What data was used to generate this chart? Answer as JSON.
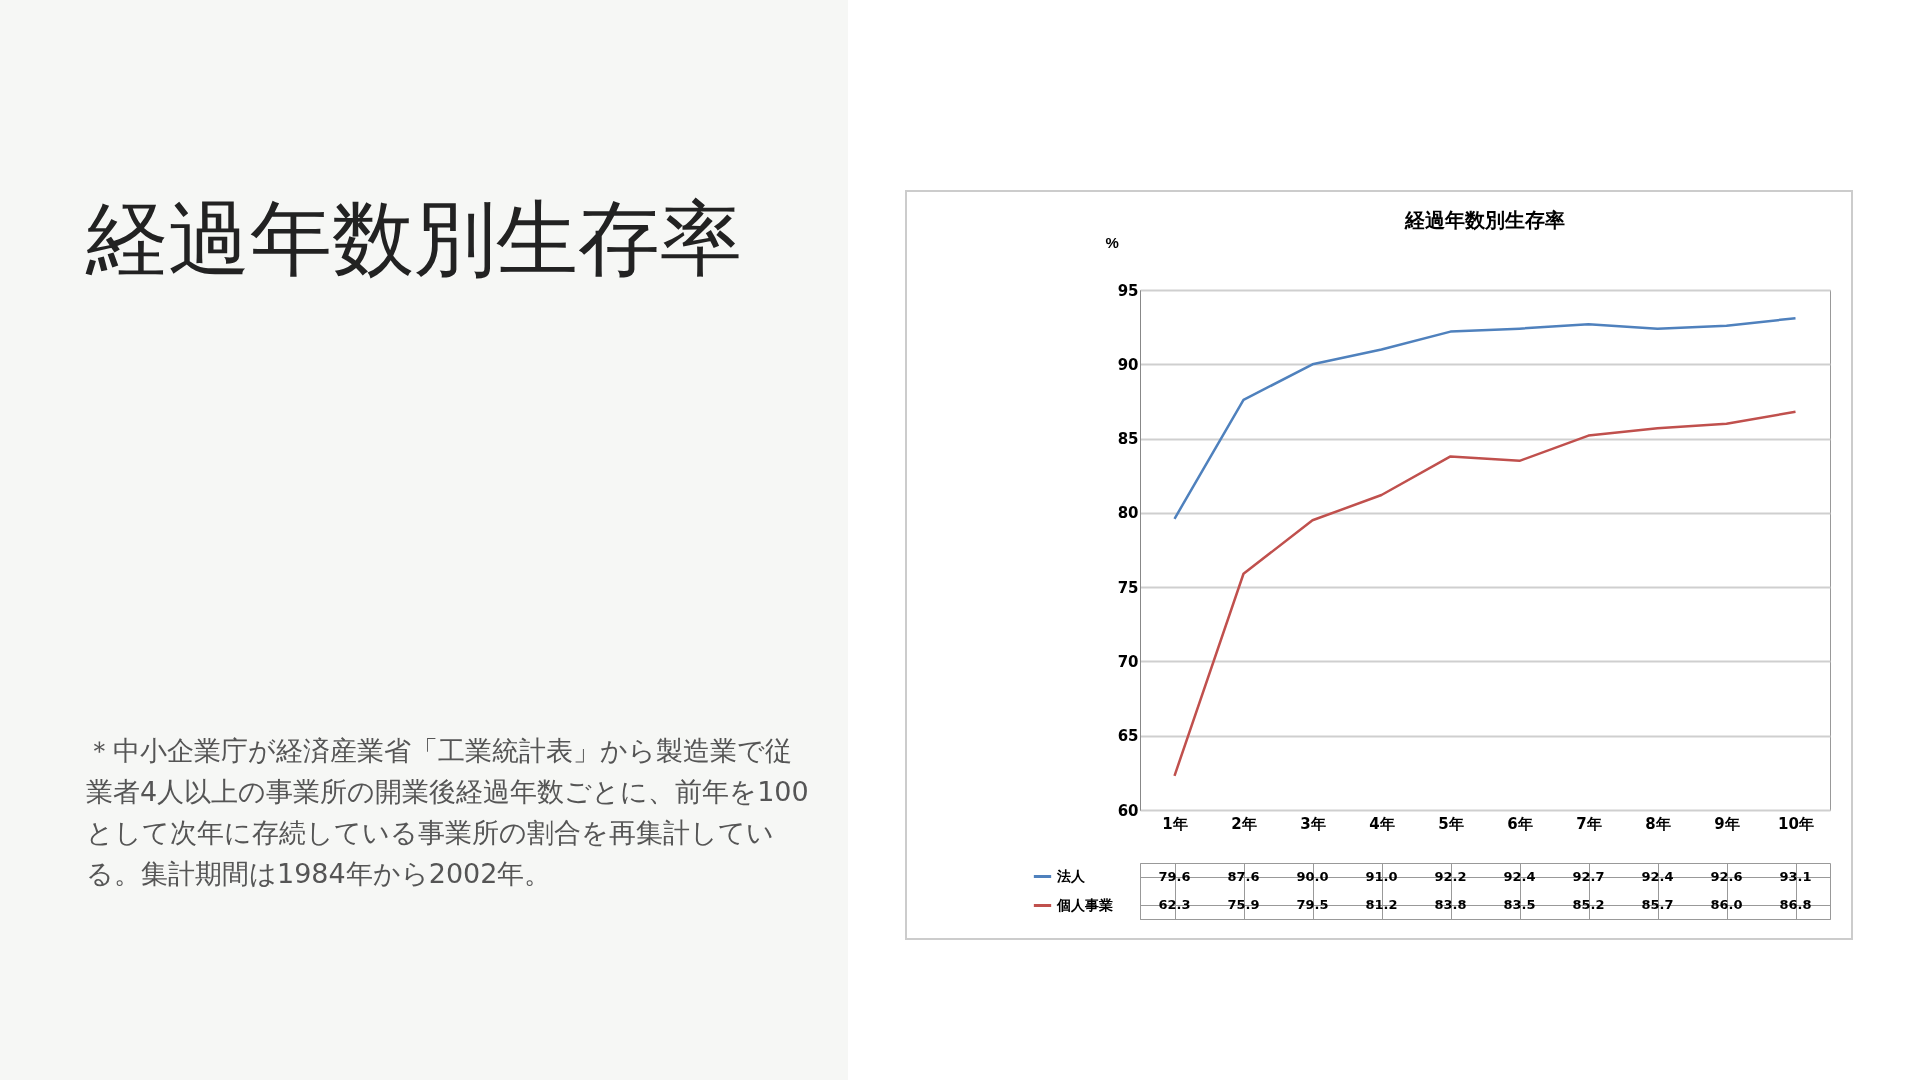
{
  "chart_data": {
    "type": "line",
    "title": "経過年数別生存率",
    "ylabel": "%",
    "categories": [
      "1年",
      "2年",
      "3年",
      "4年",
      "5年",
      "6年",
      "7年",
      "8年",
      "9年",
      "10年"
    ],
    "series": [
      {
        "name": "法人",
        "color": "#4f81bd",
        "values": [
          79.6,
          87.6,
          90.0,
          91.0,
          92.2,
          92.4,
          92.7,
          92.4,
          92.6,
          93.1
        ],
        "value_labels": [
          "79.6",
          "87.6",
          "90.0",
          "91.0",
          "92.2",
          "92.4",
          "92.7",
          "92.4",
          "92.6",
          "93.1"
        ]
      },
      {
        "name": "個人事業",
        "color": "#c0504d",
        "values": [
          62.3,
          75.9,
          79.5,
          81.2,
          83.8,
          83.5,
          85.2,
          85.7,
          86.0,
          86.8
        ],
        "value_labels": [
          "62.3",
          "75.9",
          "79.5",
          "81.2",
          "83.8",
          "83.5",
          "85.2",
          "85.7",
          "86.0",
          "86.8"
        ]
      }
    ],
    "ylim": [
      60,
      95
    ],
    "yticks": [
      60,
      65,
      70,
      75,
      80,
      85,
      90,
      95
    ],
    "grid": "y",
    "legend": "bottom",
    "annotations": [
      "経過年数別生存率",
      "＊中小企業庁が経済産業省「工業統計表」から製造業で従業者4人以上の事業所の開業後経過年数ごとに、前年を100として次年に存続している事業所の割合を再集計している。集計期間は1984年から2002年。"
    ]
  }
}
